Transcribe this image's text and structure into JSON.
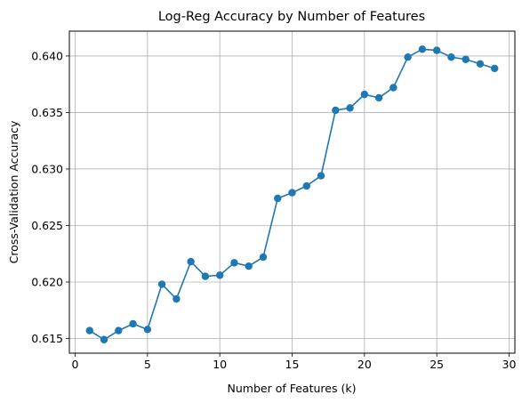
{
  "chart_data": {
    "type": "line",
    "title": "Log-Reg Accuracy by Number of Features",
    "xlabel": "Number of Features (k)",
    "ylabel": "Cross-Validation Accuracy",
    "xlim": [
      -0.4,
      30.4
    ],
    "ylim": [
      0.6137,
      0.6422
    ],
    "xticks": [
      0,
      5,
      10,
      15,
      20,
      25,
      30
    ],
    "yticks": [
      0.615,
      0.62,
      0.625,
      0.63,
      0.635,
      0.64
    ],
    "xtick_labels": [
      "0",
      "5",
      "10",
      "15",
      "20",
      "25",
      "30"
    ],
    "ytick_labels": [
      "0.615",
      "0.620",
      "0.625",
      "0.630",
      "0.635",
      "0.640"
    ],
    "grid": true,
    "marker": "circle",
    "color": "#1f77b4",
    "series": [
      {
        "x": [
          1,
          2,
          3,
          4,
          5,
          6,
          7,
          8,
          9,
          10,
          11,
          12,
          13,
          14,
          15,
          16,
          17,
          18,
          19,
          20,
          21,
          22,
          23,
          24,
          25,
          26,
          27,
          28,
          29
        ],
        "values": [
          0.6157,
          0.6149,
          0.6157,
          0.6163,
          0.6158,
          0.6198,
          0.6185,
          0.6218,
          0.6205,
          0.6206,
          0.6217,
          0.6214,
          0.6222,
          0.6274,
          0.6279,
          0.6285,
          0.6294,
          0.6352,
          0.6354,
          0.6366,
          0.6363,
          0.6372,
          0.6399,
          0.6406,
          0.6405,
          0.6399,
          0.6397,
          0.6393,
          0.6389
        ]
      }
    ]
  }
}
